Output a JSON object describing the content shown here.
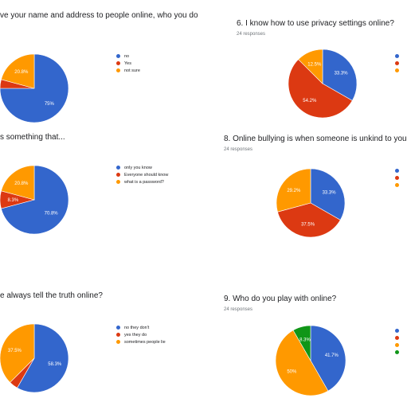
{
  "chart_data": [
    {
      "type": "pie",
      "title": "ve your name and address to people online, who you do",
      "responses": "",
      "categories": [
        "no",
        "Yes",
        "not sure"
      ],
      "values": [
        75,
        4.2,
        20.8
      ],
      "slice_labels": [
        "75%",
        "",
        "20.8%"
      ],
      "colors": [
        "#3366cc",
        "#dc3912",
        "#ff9900"
      ],
      "legend": "right"
    },
    {
      "type": "pie",
      "title": "6. I know how to use privacy settings online?",
      "responses": "24 responses",
      "categories": [
        "",
        "",
        ""
      ],
      "values": [
        33.3,
        54.2,
        12.5
      ],
      "slice_labels": [
        "33.3%",
        "54.2%",
        "12.5%"
      ],
      "colors": [
        "#3366cc",
        "#dc3912",
        "#ff9900"
      ],
      "legend": "right"
    },
    {
      "type": "pie",
      "title": "s something that...",
      "responses": "",
      "categories": [
        "only you know",
        "Everyone should know",
        "what is a password?"
      ],
      "values": [
        70.8,
        8.3,
        20.8
      ],
      "slice_labels": [
        "70.8%",
        "8.3%",
        "20.8%"
      ],
      "colors": [
        "#3366cc",
        "#dc3912",
        "#ff9900"
      ],
      "legend": "right"
    },
    {
      "type": "pie",
      "title": "8. Online bullying is when someone is unkind to you",
      "responses": "24 responses",
      "categories": [
        "",
        "",
        ""
      ],
      "values": [
        33.3,
        37.5,
        29.2
      ],
      "slice_labels": [
        "33.3%",
        "37.5%",
        "29.2%"
      ],
      "colors": [
        "#3366cc",
        "#dc3912",
        "#ff9900"
      ],
      "legend": "right"
    },
    {
      "type": "pie",
      "title": "e always tell the truth online?",
      "responses": "",
      "categories": [
        "no they don't",
        "yes they do",
        "sometimes people lie"
      ],
      "values": [
        58.3,
        4.2,
        37.5
      ],
      "slice_labels": [
        "58.3%",
        "",
        "37.5%"
      ],
      "colors": [
        "#3366cc",
        "#dc3912",
        "#ff9900"
      ],
      "legend": "right"
    },
    {
      "type": "pie",
      "title": "9. Who do you play with online?",
      "responses": "24 responses",
      "categories": [
        "",
        "",
        "",
        ""
      ],
      "values": [
        41.7,
        0,
        50,
        8.3
      ],
      "slice_labels": [
        "41.7%",
        "",
        "50%",
        "8.3%"
      ],
      "colors": [
        "#3366cc",
        "#dc3912",
        "#ff9900",
        "#109618"
      ],
      "legend": "right"
    }
  ]
}
